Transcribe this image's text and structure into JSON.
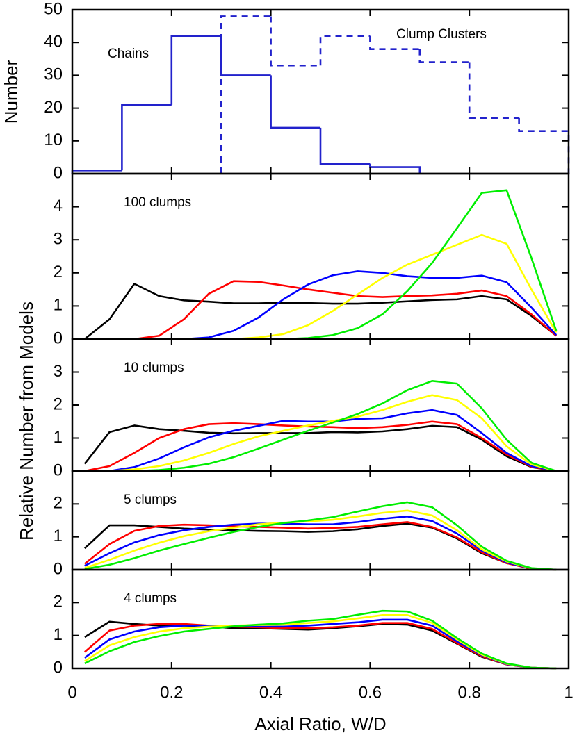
{
  "chart_data": [
    {
      "type": "histogram",
      "ylabel": "Number",
      "xlim": [
        0,
        1
      ],
      "ylim": [
        0,
        50
      ],
      "yticks": [
        0,
        10,
        20,
        30,
        40,
        50
      ],
      "series": [
        {
          "name": "Chains",
          "color": "#2222cc",
          "dashed": false,
          "bins": [
            0,
            0.1,
            0.2,
            0.3,
            0.4,
            0.5,
            0.6,
            0.7
          ],
          "values": [
            1,
            21,
            42,
            30,
            14,
            3,
            2
          ]
        },
        {
          "name": "Clump Clusters",
          "color": "#2222cc",
          "dashed": true,
          "bins": [
            0.3,
            0.4,
            0.5,
            0.6,
            0.7,
            0.8,
            0.9,
            1.0
          ],
          "values": [
            48,
            33,
            42,
            38,
            34,
            17,
            13
          ]
        }
      ]
    },
    {
      "type": "line",
      "title": "100 clumps",
      "ylabel": "Relative Number from Models",
      "xlim": [
        0,
        1
      ],
      "ylim": [
        0,
        5
      ],
      "yticks": [
        0,
        1,
        2,
        3,
        4
      ],
      "x": [
        0.025,
        0.075,
        0.125,
        0.175,
        0.225,
        0.275,
        0.325,
        0.375,
        0.425,
        0.475,
        0.525,
        0.575,
        0.625,
        0.675,
        0.725,
        0.775,
        0.825,
        0.875,
        0.925,
        0.975
      ],
      "series": [
        {
          "color": "#000000",
          "values": [
            0,
            0.6,
            1.67,
            1.3,
            1.17,
            1.13,
            1.08,
            1.08,
            1.1,
            1.09,
            1.07,
            1.07,
            1.1,
            1.14,
            1.18,
            1.2,
            1.3,
            1.2,
            0.7,
            0.1
          ]
        },
        {
          "color": "#ff0000",
          "values": [
            null,
            null,
            0,
            0.1,
            0.6,
            1.37,
            1.75,
            1.73,
            1.62,
            1.5,
            1.4,
            1.3,
            1.27,
            1.3,
            1.32,
            1.37,
            1.47,
            1.3,
            0.75,
            0.1
          ]
        },
        {
          "color": "#0000ff",
          "values": [
            null,
            null,
            null,
            null,
            0,
            0.05,
            0.25,
            0.65,
            1.2,
            1.65,
            1.93,
            2.05,
            2.0,
            1.9,
            1.85,
            1.85,
            1.92,
            1.72,
            0.95,
            0.12
          ]
        },
        {
          "color": "#ffff00",
          "values": [
            null,
            null,
            null,
            null,
            null,
            0,
            0,
            0.05,
            0.15,
            0.42,
            0.85,
            1.35,
            1.85,
            2.25,
            2.55,
            2.85,
            3.15,
            2.88,
            1.5,
            0.2
          ]
        },
        {
          "color": "#00ee00",
          "values": [
            null,
            null,
            null,
            null,
            null,
            null,
            null,
            0,
            0,
            0.03,
            0.12,
            0.33,
            0.75,
            1.45,
            2.3,
            3.35,
            4.42,
            4.5,
            2.45,
            0.25
          ]
        }
      ]
    },
    {
      "type": "line",
      "title": "10 clumps",
      "xlim": [
        0,
        1
      ],
      "ylim": [
        0,
        4
      ],
      "yticks": [
        0,
        1,
        2,
        3
      ],
      "x": [
        0.025,
        0.075,
        0.125,
        0.175,
        0.225,
        0.275,
        0.325,
        0.375,
        0.425,
        0.475,
        0.525,
        0.575,
        0.625,
        0.675,
        0.725,
        0.775,
        0.825,
        0.875,
        0.925,
        0.975
      ],
      "series": [
        {
          "color": "#000000",
          "values": [
            0.22,
            1.18,
            1.38,
            1.27,
            1.22,
            1.16,
            1.14,
            1.15,
            1.15,
            1.15,
            1.18,
            1.17,
            1.2,
            1.27,
            1.37,
            1.33,
            0.95,
            0.45,
            0.12,
            0
          ]
        },
        {
          "color": "#ff0000",
          "values": [
            0,
            0.15,
            0.55,
            1.0,
            1.27,
            1.42,
            1.45,
            1.42,
            1.38,
            1.35,
            1.33,
            1.3,
            1.33,
            1.4,
            1.5,
            1.42,
            1.0,
            0.5,
            0.13,
            0
          ]
        },
        {
          "color": "#0000ff",
          "values": [
            0,
            0,
            0.12,
            0.38,
            0.72,
            1.02,
            1.22,
            1.37,
            1.52,
            1.5,
            1.5,
            1.58,
            1.6,
            1.75,
            1.85,
            1.7,
            1.15,
            0.55,
            0.15,
            0
          ]
        },
        {
          "color": "#ffff00",
          "values": [
            null,
            0,
            0.05,
            0.15,
            0.32,
            0.55,
            0.82,
            1.05,
            1.22,
            1.38,
            1.52,
            1.65,
            1.85,
            2.1,
            2.3,
            2.15,
            1.6,
            0.75,
            0.2,
            0
          ]
        },
        {
          "color": "#00ee00",
          "values": [
            null,
            0,
            0,
            0.03,
            0.1,
            0.22,
            0.42,
            0.68,
            0.95,
            1.22,
            1.47,
            1.73,
            2.05,
            2.45,
            2.73,
            2.65,
            1.9,
            0.95,
            0.25,
            0
          ]
        }
      ]
    },
    {
      "type": "line",
      "title": "5 clumps",
      "xlim": [
        0,
        1
      ],
      "ylim": [
        0,
        3
      ],
      "yticks": [
        0,
        1,
        2
      ],
      "x": [
        0.025,
        0.075,
        0.125,
        0.175,
        0.225,
        0.275,
        0.325,
        0.375,
        0.425,
        0.475,
        0.525,
        0.575,
        0.625,
        0.675,
        0.725,
        0.775,
        0.825,
        0.875,
        0.925,
        0.975
      ],
      "series": [
        {
          "color": "#000000",
          "values": [
            0.65,
            1.35,
            1.35,
            1.3,
            1.25,
            1.22,
            1.2,
            1.18,
            1.17,
            1.15,
            1.17,
            1.23,
            1.33,
            1.4,
            1.28,
            0.95,
            0.5,
            0.2,
            0.03,
            0
          ]
        },
        {
          "color": "#ff0000",
          "values": [
            0.18,
            0.78,
            1.18,
            1.33,
            1.37,
            1.35,
            1.32,
            1.3,
            1.28,
            1.25,
            1.27,
            1.3,
            1.38,
            1.45,
            1.3,
            0.98,
            0.53,
            0.2,
            0.03,
            0
          ]
        },
        {
          "color": "#0000ff",
          "values": [
            0.12,
            0.5,
            0.83,
            1.05,
            1.2,
            1.3,
            1.37,
            1.4,
            1.4,
            1.38,
            1.38,
            1.45,
            1.55,
            1.62,
            1.48,
            1.1,
            0.58,
            0.22,
            0.04,
            0
          ]
        },
        {
          "color": "#ffff00",
          "values": [
            0.05,
            0.3,
            0.58,
            0.82,
            1.02,
            1.17,
            1.28,
            1.38,
            1.43,
            1.47,
            1.52,
            1.62,
            1.73,
            1.8,
            1.65,
            1.2,
            0.62,
            0.25,
            0.04,
            0
          ]
        },
        {
          "color": "#00ee00",
          "values": [
            0.02,
            0.15,
            0.35,
            0.58,
            0.78,
            0.97,
            1.15,
            1.3,
            1.42,
            1.5,
            1.6,
            1.77,
            1.93,
            2.05,
            1.9,
            1.35,
            0.7,
            0.27,
            0.05,
            0
          ]
        }
      ]
    },
    {
      "type": "line",
      "title": "4 clumps",
      "xlabel": "Axial Ratio, W/D",
      "xlim": [
        0,
        1
      ],
      "ylim": [
        0,
        3
      ],
      "yticks": [
        0,
        1,
        2
      ],
      "xticks": [
        0,
        0.2,
        0.4,
        0.6,
        0.8,
        1
      ],
      "x": [
        0.025,
        0.075,
        0.125,
        0.175,
        0.225,
        0.275,
        0.325,
        0.375,
        0.425,
        0.475,
        0.525,
        0.575,
        0.625,
        0.675,
        0.725,
        0.775,
        0.825,
        0.875,
        0.925,
        0.975
      ],
      "series": [
        {
          "color": "#000000",
          "values": [
            0.95,
            1.42,
            1.35,
            1.3,
            1.3,
            1.28,
            1.22,
            1.22,
            1.2,
            1.18,
            1.22,
            1.28,
            1.35,
            1.33,
            1.15,
            0.75,
            0.35,
            0.12,
            0.02,
            0
          ]
        },
        {
          "color": "#ff0000",
          "values": [
            0.5,
            1.15,
            1.3,
            1.35,
            1.35,
            1.3,
            1.27,
            1.25,
            1.22,
            1.22,
            1.25,
            1.3,
            1.38,
            1.38,
            1.2,
            0.77,
            0.37,
            0.12,
            0.02,
            0
          ]
        },
        {
          "color": "#0000ff",
          "values": [
            0.32,
            0.88,
            1.12,
            1.25,
            1.3,
            1.3,
            1.28,
            1.27,
            1.27,
            1.3,
            1.35,
            1.4,
            1.48,
            1.48,
            1.3,
            0.82,
            0.4,
            0.13,
            0.02,
            0
          ]
        },
        {
          "color": "#ffff00",
          "values": [
            0.22,
            0.7,
            0.95,
            1.12,
            1.22,
            1.27,
            1.3,
            1.32,
            1.33,
            1.38,
            1.43,
            1.52,
            1.62,
            1.62,
            1.38,
            0.88,
            0.42,
            0.14,
            0.02,
            0
          ]
        },
        {
          "color": "#00ee00",
          "values": [
            0.15,
            0.52,
            0.8,
            0.98,
            1.12,
            1.2,
            1.28,
            1.33,
            1.37,
            1.45,
            1.5,
            1.63,
            1.75,
            1.73,
            1.45,
            0.92,
            0.45,
            0.15,
            0.02,
            0
          ]
        }
      ]
    }
  ]
}
